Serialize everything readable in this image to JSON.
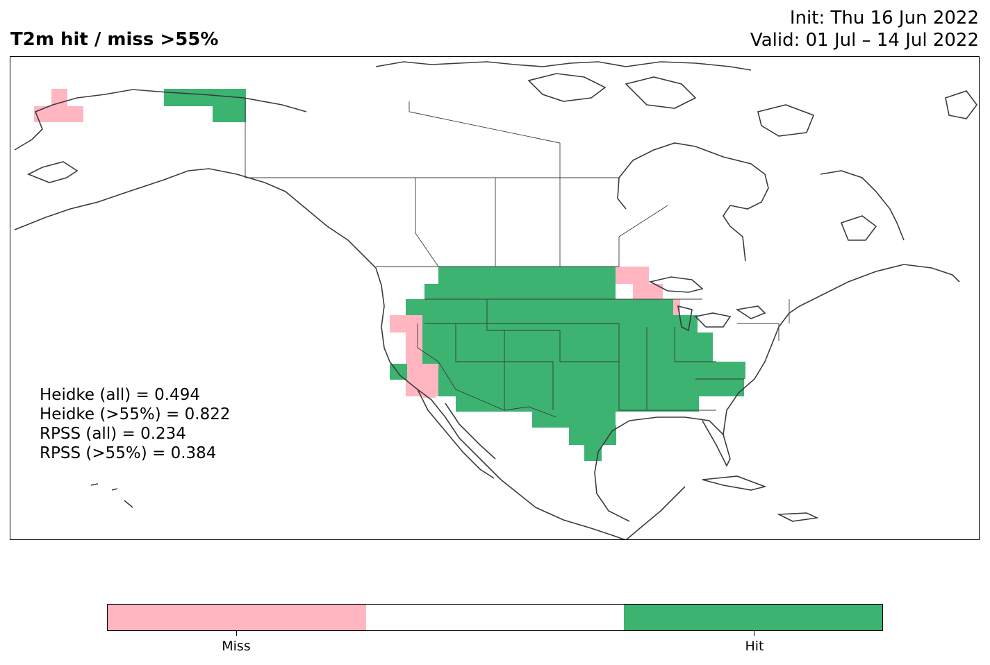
{
  "title": "T2m hit / miss  >55%",
  "init_line": "Init: Thu 16 Jun 2022",
  "valid_line": "Valid: 01 Jul – 14 Jul 2022",
  "stats": [
    "Heidke (all) = 0.494",
    "Heidke (>55%) = 0.822",
    "RPSS (all) = 0.234",
    "RPSS (>55%) = 0.384"
  ],
  "legend": {
    "categories": [
      "Miss",
      "",
      "Hit"
    ],
    "colors": [
      "#ffb6c1",
      "#ffffff",
      "#3cb371"
    ]
  },
  "colors": {
    "hit": "#3cb371",
    "miss": "#ffb6c1",
    "coast": "#3a3a3a"
  },
  "chart_data": {
    "type": "categorical map",
    "region": "North America",
    "classes": [
      "Miss",
      "Hit"
    ],
    "description_of_cells": "Hit cells cover most of the contiguous US interior and Great Plains; Miss cells over western Alaska, California/Nevada border area and Upper Midwest (Wisconsin/Michigan)"
  }
}
